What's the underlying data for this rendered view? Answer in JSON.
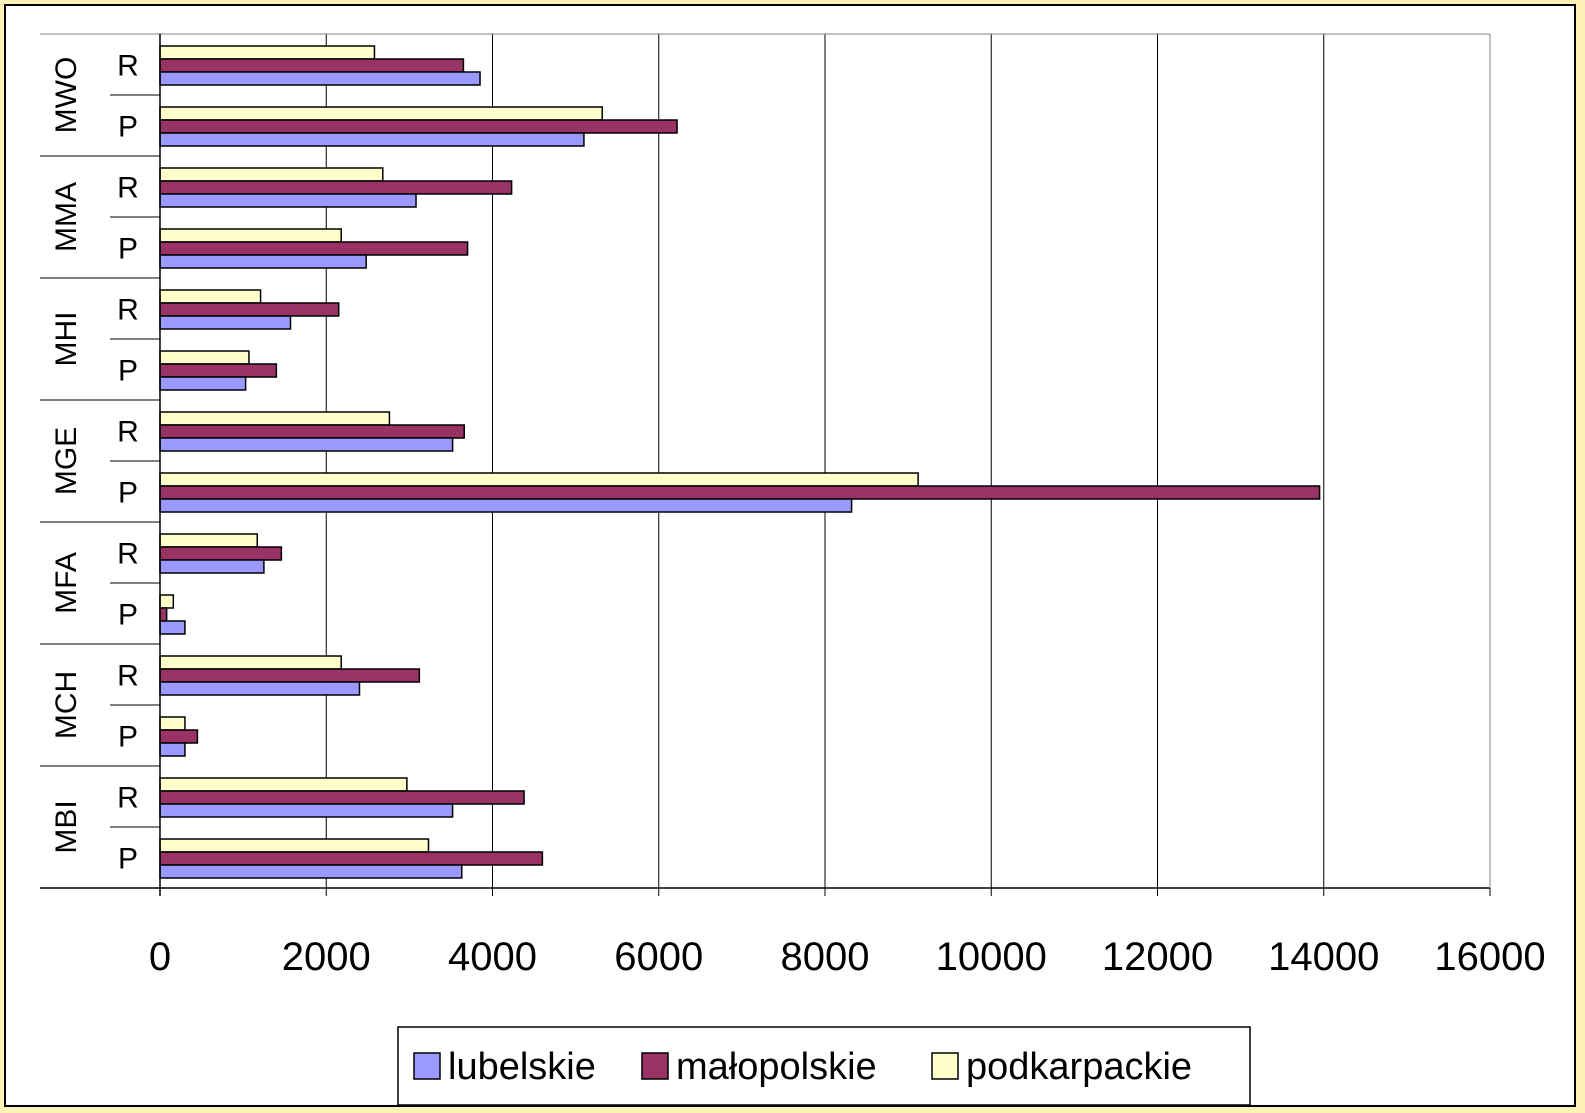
{
  "chart_data": {
    "type": "bar",
    "orientation": "horizontal",
    "xlim": [
      0,
      16000
    ],
    "xticks": [
      "0",
      "2000",
      "4000",
      "6000",
      "8000",
      "10000",
      "12000",
      "14000",
      "16000"
    ],
    "grid": "vertical",
    "legend_position": "bottom",
    "groups": [
      {
        "label": "MWO",
        "rows": [
          {
            "label": "R",
            "values": [
              3850,
              3650,
              2580
            ]
          },
          {
            "label": "P",
            "values": [
              5100,
              6220,
              5320
            ]
          }
        ]
      },
      {
        "label": "MMA",
        "rows": [
          {
            "label": "R",
            "values": [
              3080,
              4230,
              2680
            ]
          },
          {
            "label": "P",
            "values": [
              2480,
              3700,
              2180
            ]
          }
        ]
      },
      {
        "label": "MHI",
        "rows": [
          {
            "label": "R",
            "values": [
              1570,
              2150,
              1210
            ]
          },
          {
            "label": "P",
            "values": [
              1030,
              1400,
              1070
            ]
          }
        ]
      },
      {
        "label": "MGE",
        "rows": [
          {
            "label": "R",
            "values": [
              3520,
              3660,
              2760
            ]
          },
          {
            "label": "P",
            "values": [
              8320,
              13950,
              9120
            ]
          }
        ]
      },
      {
        "label": "MFA",
        "rows": [
          {
            "label": "R",
            "values": [
              1250,
              1460,
              1170
            ]
          },
          {
            "label": "P",
            "values": [
              300,
              80,
              160
            ]
          }
        ]
      },
      {
        "label": "MCH",
        "rows": [
          {
            "label": "R",
            "values": [
              2400,
              3120,
              2180
            ]
          },
          {
            "label": "P",
            "values": [
              300,
              450,
              300
            ]
          }
        ]
      },
      {
        "label": "MBI",
        "rows": [
          {
            "label": "R",
            "values": [
              3520,
              4380,
              2970
            ]
          },
          {
            "label": "P",
            "values": [
              3630,
              4600,
              3230
            ]
          }
        ]
      }
    ],
    "series": [
      {
        "name": "lubelskie",
        "color": "#9999ff"
      },
      {
        "name": "małopolskie",
        "color": "#993366"
      },
      {
        "name": "podkarpackie",
        "color": "#ffffcc"
      }
    ]
  }
}
